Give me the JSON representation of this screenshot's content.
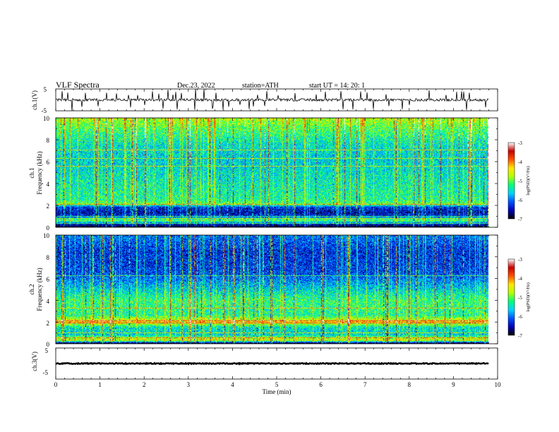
{
  "header": {
    "title": "VLF  Spectra",
    "date": "Dec.23, 2022",
    "station": "station=ATH",
    "start": "start  UT  =    14: 20: 1"
  },
  "panels": {
    "ch1_wave": {
      "ylabel": "ch.1(V)",
      "yticks": [
        "5",
        "-5"
      ]
    },
    "ch1_spec": {
      "ylabel_top": "ch.1",
      "ylabel": "Frequency  (kHz)",
      "yticks": [
        "10",
        "8",
        "6",
        "4",
        "2",
        "0"
      ]
    },
    "ch2_spec": {
      "ylabel_top": "ch.2",
      "ylabel": "Frequency  (kHz)",
      "yticks": [
        "10",
        "8",
        "6",
        "4",
        "2",
        "0"
      ]
    },
    "ch3_wave": {
      "ylabel": "ch.3(V)",
      "yticks": [
        "5",
        "-5"
      ]
    }
  },
  "colorbar": {
    "label": "log(PSD)(V²/Hz)",
    "ticks": [
      "-3",
      "-4",
      "-5",
      "-6",
      "-7"
    ],
    "colors": [
      "#000000",
      "#0000b4",
      "#0050ff",
      "#00d2ff",
      "#00ff78",
      "#b4ff00",
      "#ffe600",
      "#ff5000",
      "#c80000",
      "#ffffff"
    ]
  },
  "xaxis": {
    "label": "Time  (min)",
    "ticks": [
      "0",
      "1",
      "2",
      "3",
      "4",
      "5",
      "6",
      "7",
      "8",
      "9",
      "10"
    ]
  },
  "chart_data": [
    {
      "type": "line",
      "name": "ch.1 waveform",
      "ylabel": "ch.1(V)",
      "ylim": [
        -5,
        5
      ],
      "xlim": [
        0,
        10
      ],
      "baseline": 0,
      "noise_amplitude": 0.6,
      "spike_min": -5,
      "spike_max": 5,
      "data_end_min": 9.8
    },
    {
      "type": "heatmap",
      "name": "ch.1 spectrogram",
      "xlabel": "Time  (min)",
      "ylabel": "Frequency  (kHz)",
      "xlim": [
        0,
        10
      ],
      "ylim": [
        0,
        10
      ],
      "zlim": [
        -7,
        -3
      ],
      "data_end_min": 9.8,
      "profile": [
        {
          "f": 0.0,
          "z": -7.0
        },
        {
          "f": 0.3,
          "z": -6.3
        },
        {
          "f": 0.6,
          "z": -5.0
        },
        {
          "f": 1.0,
          "z": -6.3
        },
        {
          "f": 1.3,
          "z": -6.5
        },
        {
          "f": 1.8,
          "z": -6.3
        },
        {
          "f": 2.1,
          "z": -5.0
        },
        {
          "f": 2.5,
          "z": -5.3
        },
        {
          "f": 4.0,
          "z": -5.4
        },
        {
          "f": 6.0,
          "z": -5.6
        },
        {
          "f": 7.5,
          "z": -5.5
        },
        {
          "f": 9.0,
          "z": -5.1
        },
        {
          "f": 10.0,
          "z": -4.7
        }
      ],
      "bands_khz": [
        0.3,
        0.8,
        1.0,
        2.1,
        5.6,
        6.3,
        7.1
      ]
    },
    {
      "type": "heatmap",
      "name": "ch.2 spectrogram",
      "xlabel": "Time  (min)",
      "ylabel": "Frequency  (kHz)",
      "xlim": [
        0,
        10
      ],
      "ylim": [
        0,
        10
      ],
      "zlim": [
        -7,
        -3
      ],
      "data_end_min": 9.8,
      "profile": [
        {
          "f": 0.0,
          "z": -7.0
        },
        {
          "f": 0.3,
          "z": -4.5
        },
        {
          "f": 0.8,
          "z": -5.6
        },
        {
          "f": 1.5,
          "z": -5.5
        },
        {
          "f": 2.0,
          "z": -4.3
        },
        {
          "f": 2.6,
          "z": -5.3
        },
        {
          "f": 4.0,
          "z": -5.2
        },
        {
          "f": 5.0,
          "z": -5.6
        },
        {
          "f": 6.5,
          "z": -6.2
        },
        {
          "f": 8.5,
          "z": -6.3
        },
        {
          "f": 10.0,
          "z": -6.0
        }
      ],
      "bands_khz": [
        0.5,
        1.0,
        1.9,
        2.1,
        3.3,
        6.3
      ]
    },
    {
      "type": "line",
      "name": "ch.3 waveform",
      "ylabel": "ch.3(V)",
      "ylim": [
        -5,
        5
      ],
      "xlim": [
        0,
        10
      ],
      "baseline": 0,
      "noise_amplitude": 0.15,
      "data_end_min": 9.8
    }
  ]
}
